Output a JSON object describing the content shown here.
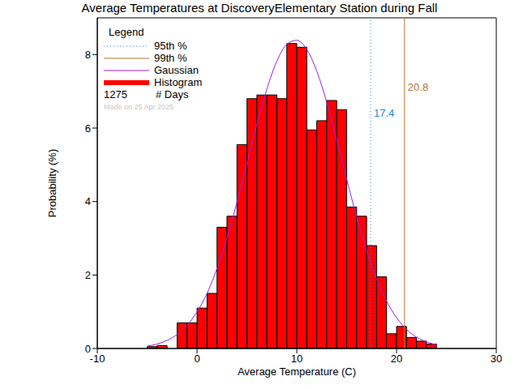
{
  "chart_data": {
    "type": "histogram",
    "title": "Average Temperatures at DiscoveryElementary Station during Fall",
    "x_label": "Average Temperature (C)",
    "y_label": "Probability (%)",
    "xlim": [
      -10,
      30
    ],
    "xticks": [
      -10,
      0,
      10,
      20,
      30
    ],
    "ylim": [
      0,
      9
    ],
    "yticks": [
      0,
      2,
      4,
      6,
      8
    ],
    "legend": "upper left",
    "legend_title": "Legend",
    "legend_note": {
      "value": 1275,
      "label": "# Days"
    },
    "footnote": "Made on 25 Apr 2025",
    "series": [
      {
        "name": "95th %",
        "type": "vline",
        "x": 17.4,
        "color": "#1e88d8",
        "line_style": "dotted"
      },
      {
        "name": "99th %",
        "type": "vline",
        "x": 20.8,
        "color": "#b8732f",
        "line_style": "solid"
      },
      {
        "name": "Gaussian",
        "type": "line",
        "color": "#9a20e0",
        "line_style": "solid",
        "x": [
          -5,
          -4,
          -3,
          -2,
          -1,
          0,
          1,
          2,
          3,
          4,
          5,
          6,
          7,
          8,
          9,
          10,
          11,
          12,
          13,
          14,
          15,
          16,
          17,
          18,
          19,
          20,
          21,
          22,
          23,
          24
        ],
        "values": [
          0.065,
          0.12,
          0.22,
          0.38,
          0.63,
          1.0,
          1.5,
          2.18,
          3.01,
          3.98,
          5.04,
          6.1,
          7.06,
          7.82,
          8.28,
          8.39,
          8.14,
          7.55,
          6.7,
          5.68,
          4.61,
          3.58,
          2.66,
          1.89,
          1.29,
          0.84,
          0.52,
          0.31,
          0.18,
          0.1
        ]
      },
      {
        "name": "Histogram",
        "type": "histogram",
        "color": "#ff0000",
        "bins": [
          -5,
          -4,
          -3,
          -2,
          -1,
          0,
          1,
          2,
          3,
          4,
          5,
          6,
          7,
          8,
          9,
          10,
          11,
          12,
          13,
          14,
          15,
          16,
          17,
          18,
          19,
          20,
          21,
          22,
          23,
          24
        ],
        "values": [
          0.05,
          0.08,
          0,
          0.7,
          0.7,
          1.1,
          1.5,
          3.3,
          3.6,
          5.55,
          6.8,
          6.9,
          6.9,
          6.8,
          8.3,
          8.2,
          5.95,
          6.2,
          6.75,
          6.5,
          3.85,
          3.6,
          2.8,
          1.95,
          0.4,
          0.6,
          0.3,
          0.2,
          0.12
        ]
      }
    ]
  }
}
